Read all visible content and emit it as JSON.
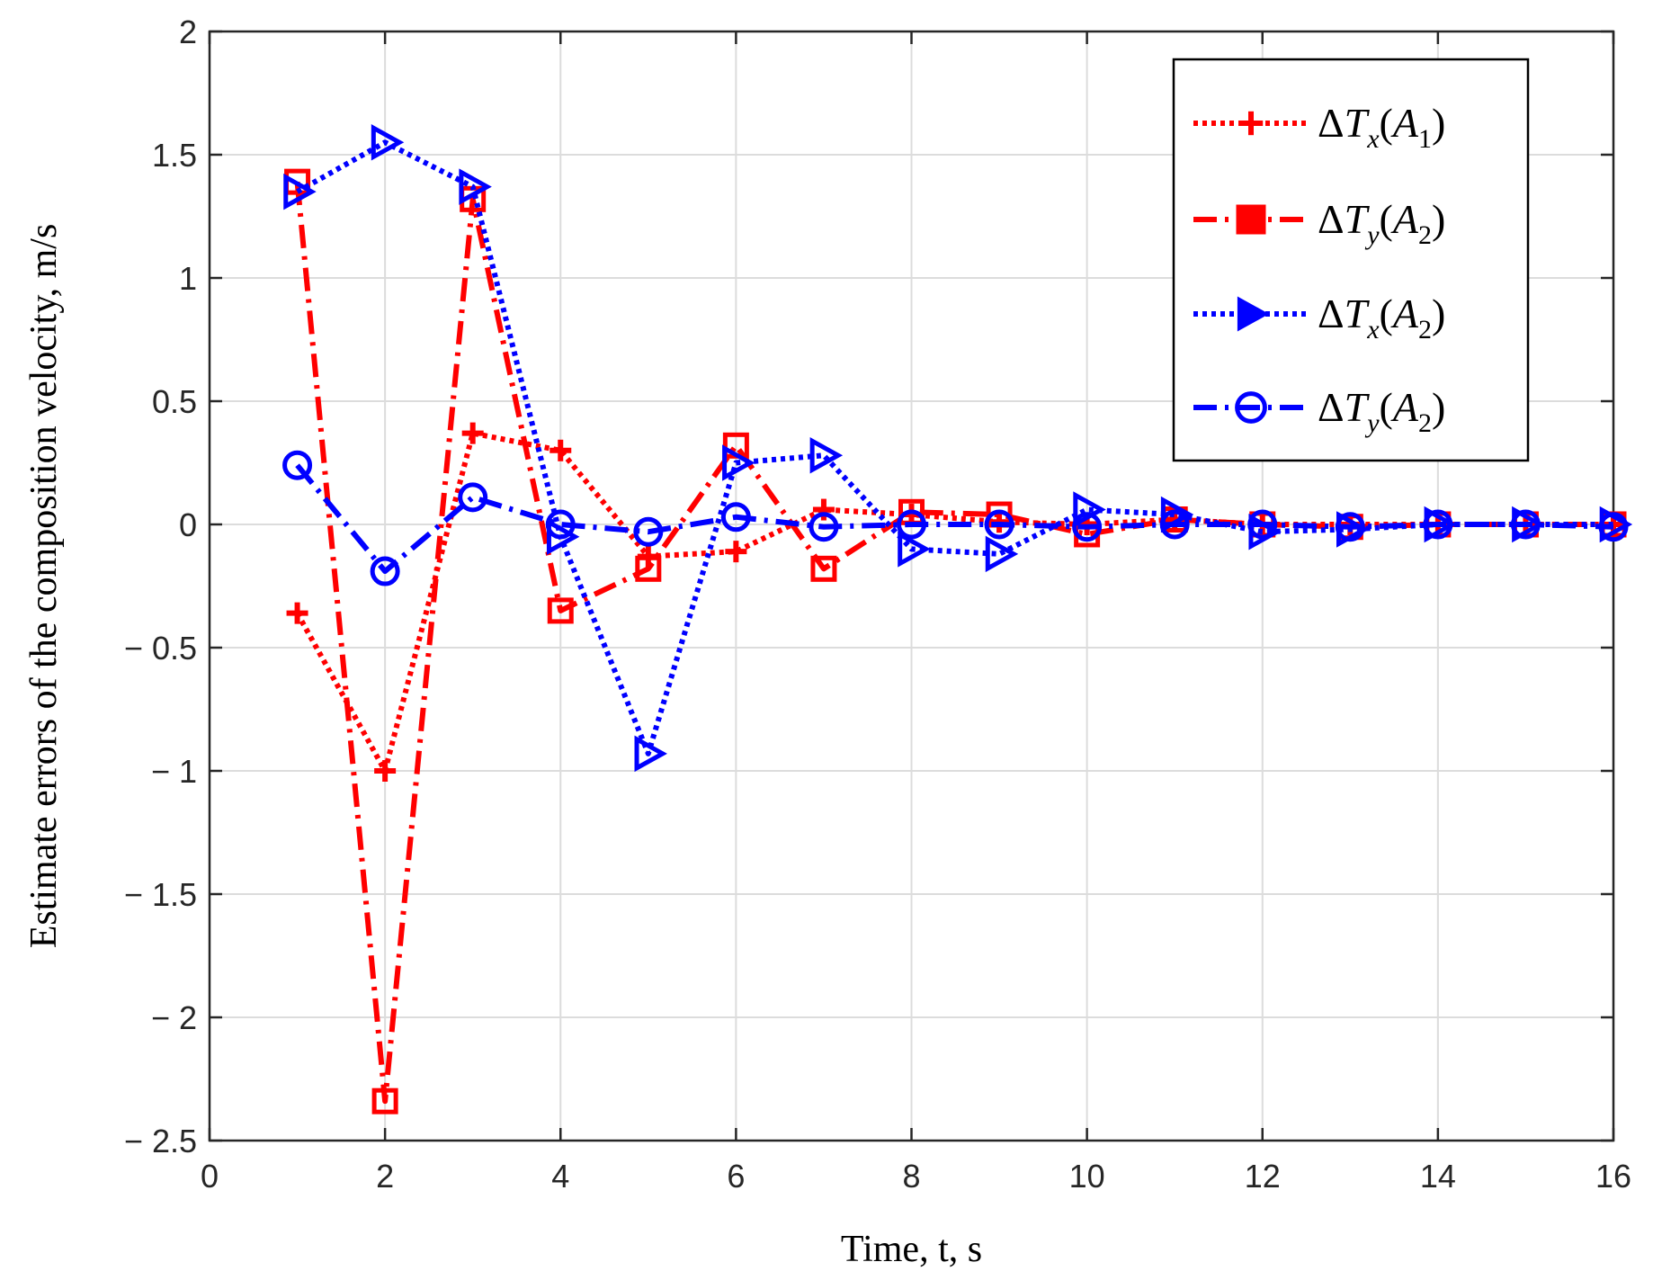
{
  "chart_data": {
    "type": "line",
    "title": "",
    "xlabel": "Time,  t, s",
    "ylabel": "Estimate errors of the composition velocity, m/s",
    "xlim": [
      0,
      16
    ],
    "ylim": [
      -2.5,
      2
    ],
    "xticks": [
      0,
      2,
      4,
      6,
      8,
      10,
      12,
      14,
      16
    ],
    "yticks": [
      -2.5,
      -2,
      -1.5,
      -1,
      -0.5,
      0,
      0.5,
      1,
      1.5,
      2
    ],
    "xtick_labels": [
      "0",
      "2",
      "4",
      "6",
      "8",
      "10",
      "12",
      "14",
      "16"
    ],
    "ytick_labels": [
      "− 2.5",
      "− 2",
      "− 1.5",
      "− 1",
      "− 0.5",
      "0",
      "0.5",
      "1",
      "1.5",
      "2"
    ],
    "grid": true,
    "legend_position": "top-right",
    "x": [
      1,
      2,
      3,
      4,
      5,
      6,
      7,
      8,
      9,
      10,
      11,
      12,
      13,
      14,
      15,
      16
    ],
    "series": [
      {
        "name": "ΔT_x(A_1)",
        "legend": {
          "delta": "Δ",
          "var": "T",
          "sub1": "x",
          "open": "(",
          "arg": "A",
          "sub2": "1",
          "close": ")"
        },
        "color": "#ff0000",
        "dash": "dotted",
        "marker": "plus",
        "values": [
          -0.36,
          -1.0,
          0.37,
          0.3,
          -0.13,
          -0.11,
          0.06,
          0.04,
          0.01,
          0.0,
          0.02,
          0.0,
          0.0,
          0.0,
          0.0,
          0.0
        ]
      },
      {
        "name": "ΔT_y(A_2)",
        "legend": {
          "delta": "Δ",
          "var": "T",
          "sub1": "y",
          "open": "(",
          "arg": "A",
          "sub2": "2",
          "close": ")"
        },
        "color": "#ff0000",
        "dash": "dashdot",
        "marker": "square",
        "values": [
          1.39,
          -2.34,
          1.32,
          -0.35,
          -0.18,
          0.32,
          -0.18,
          0.05,
          0.04,
          -0.04,
          0.02,
          0.0,
          -0.01,
          0.0,
          0.0,
          0.0
        ]
      },
      {
        "name": "ΔT_x(A_2)",
        "legend": {
          "delta": "Δ",
          "var": "T",
          "sub1": "x",
          "open": "(",
          "arg": "A",
          "sub2": "2",
          "close": ")"
        },
        "color": "#0000ff",
        "dash": "dotted",
        "marker": "triangle-right",
        "values": [
          1.35,
          1.55,
          1.37,
          -0.05,
          -0.93,
          0.25,
          0.28,
          -0.1,
          -0.12,
          0.06,
          0.04,
          -0.03,
          -0.02,
          0.0,
          0.0,
          0.0
        ]
      },
      {
        "name": "ΔT_y(A_2)",
        "legend": {
          "delta": "Δ",
          "var": "T",
          "sub1": "y",
          "open": "(",
          "arg": "A",
          "sub2": "2",
          "close": ")"
        },
        "color": "#0000ff",
        "dash": "dashdot",
        "marker": "circle",
        "values": [
          0.24,
          -0.19,
          0.11,
          0.0,
          -0.03,
          0.03,
          -0.01,
          0.0,
          0.0,
          -0.01,
          0.0,
          0.0,
          -0.01,
          0.0,
          0.0,
          -0.01
        ]
      }
    ]
  }
}
